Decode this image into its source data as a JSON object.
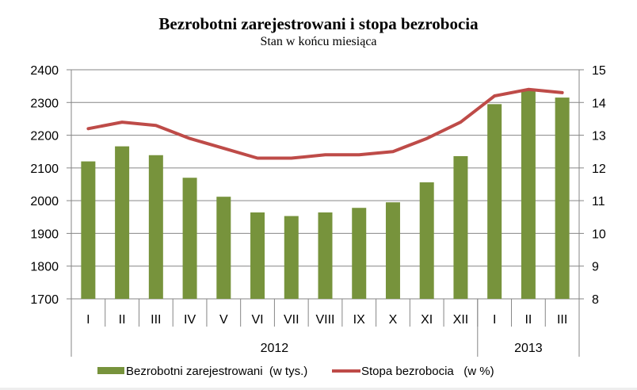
{
  "chart_data": {
    "type": "bar+line",
    "title": "Bezrobotni zarejestrowani i stopa bezrobocia",
    "subtitle": "Stan w końcu miesiąca",
    "categories": [
      "I",
      "II",
      "III",
      "IV",
      "V",
      "VI",
      "VII",
      "VIII",
      "IX",
      "X",
      "XI",
      "XII",
      "I",
      "II",
      "III"
    ],
    "category_groups": [
      {
        "label": "2012",
        "start": 0,
        "end": 11
      },
      {
        "label": "2013",
        "start": 12,
        "end": 14
      }
    ],
    "series": [
      {
        "name": "Bezrobotni zarejestrowani  (w tys.)",
        "type": "bar",
        "axis": "left",
        "color": "#77933c",
        "values": [
          2120,
          2166,
          2139,
          2070,
          2012,
          1964,
          1953,
          1964,
          1978,
          1995,
          2056,
          2136,
          2295,
          2336,
          2315
        ]
      },
      {
        "name": "Stopa bezrobocia   (w %)",
        "type": "line",
        "axis": "right",
        "color": "#be4b48",
        "values": [
          13.2,
          13.4,
          13.3,
          12.9,
          12.6,
          12.3,
          12.3,
          12.4,
          12.4,
          12.5,
          12.9,
          13.4,
          14.2,
          14.4,
          14.3
        ]
      }
    ],
    "left_axis": {
      "min": 1700,
      "max": 2400,
      "step": 100,
      "ticks": [
        "1700",
        "1800",
        "1900",
        "2000",
        "2100",
        "2200",
        "2300",
        "2400"
      ]
    },
    "right_axis": {
      "min": 8,
      "max": 15,
      "step": 1,
      "ticks": [
        "8",
        "9",
        "10",
        "11",
        "12",
        "13",
        "14",
        "15"
      ]
    },
    "grid": true,
    "legend_position": "bottom"
  },
  "legend": {
    "bars_label": "Bezrobotni zarejestrowani  (w tys.)",
    "line_label": "Stopa bezrobocia   (w %)"
  }
}
